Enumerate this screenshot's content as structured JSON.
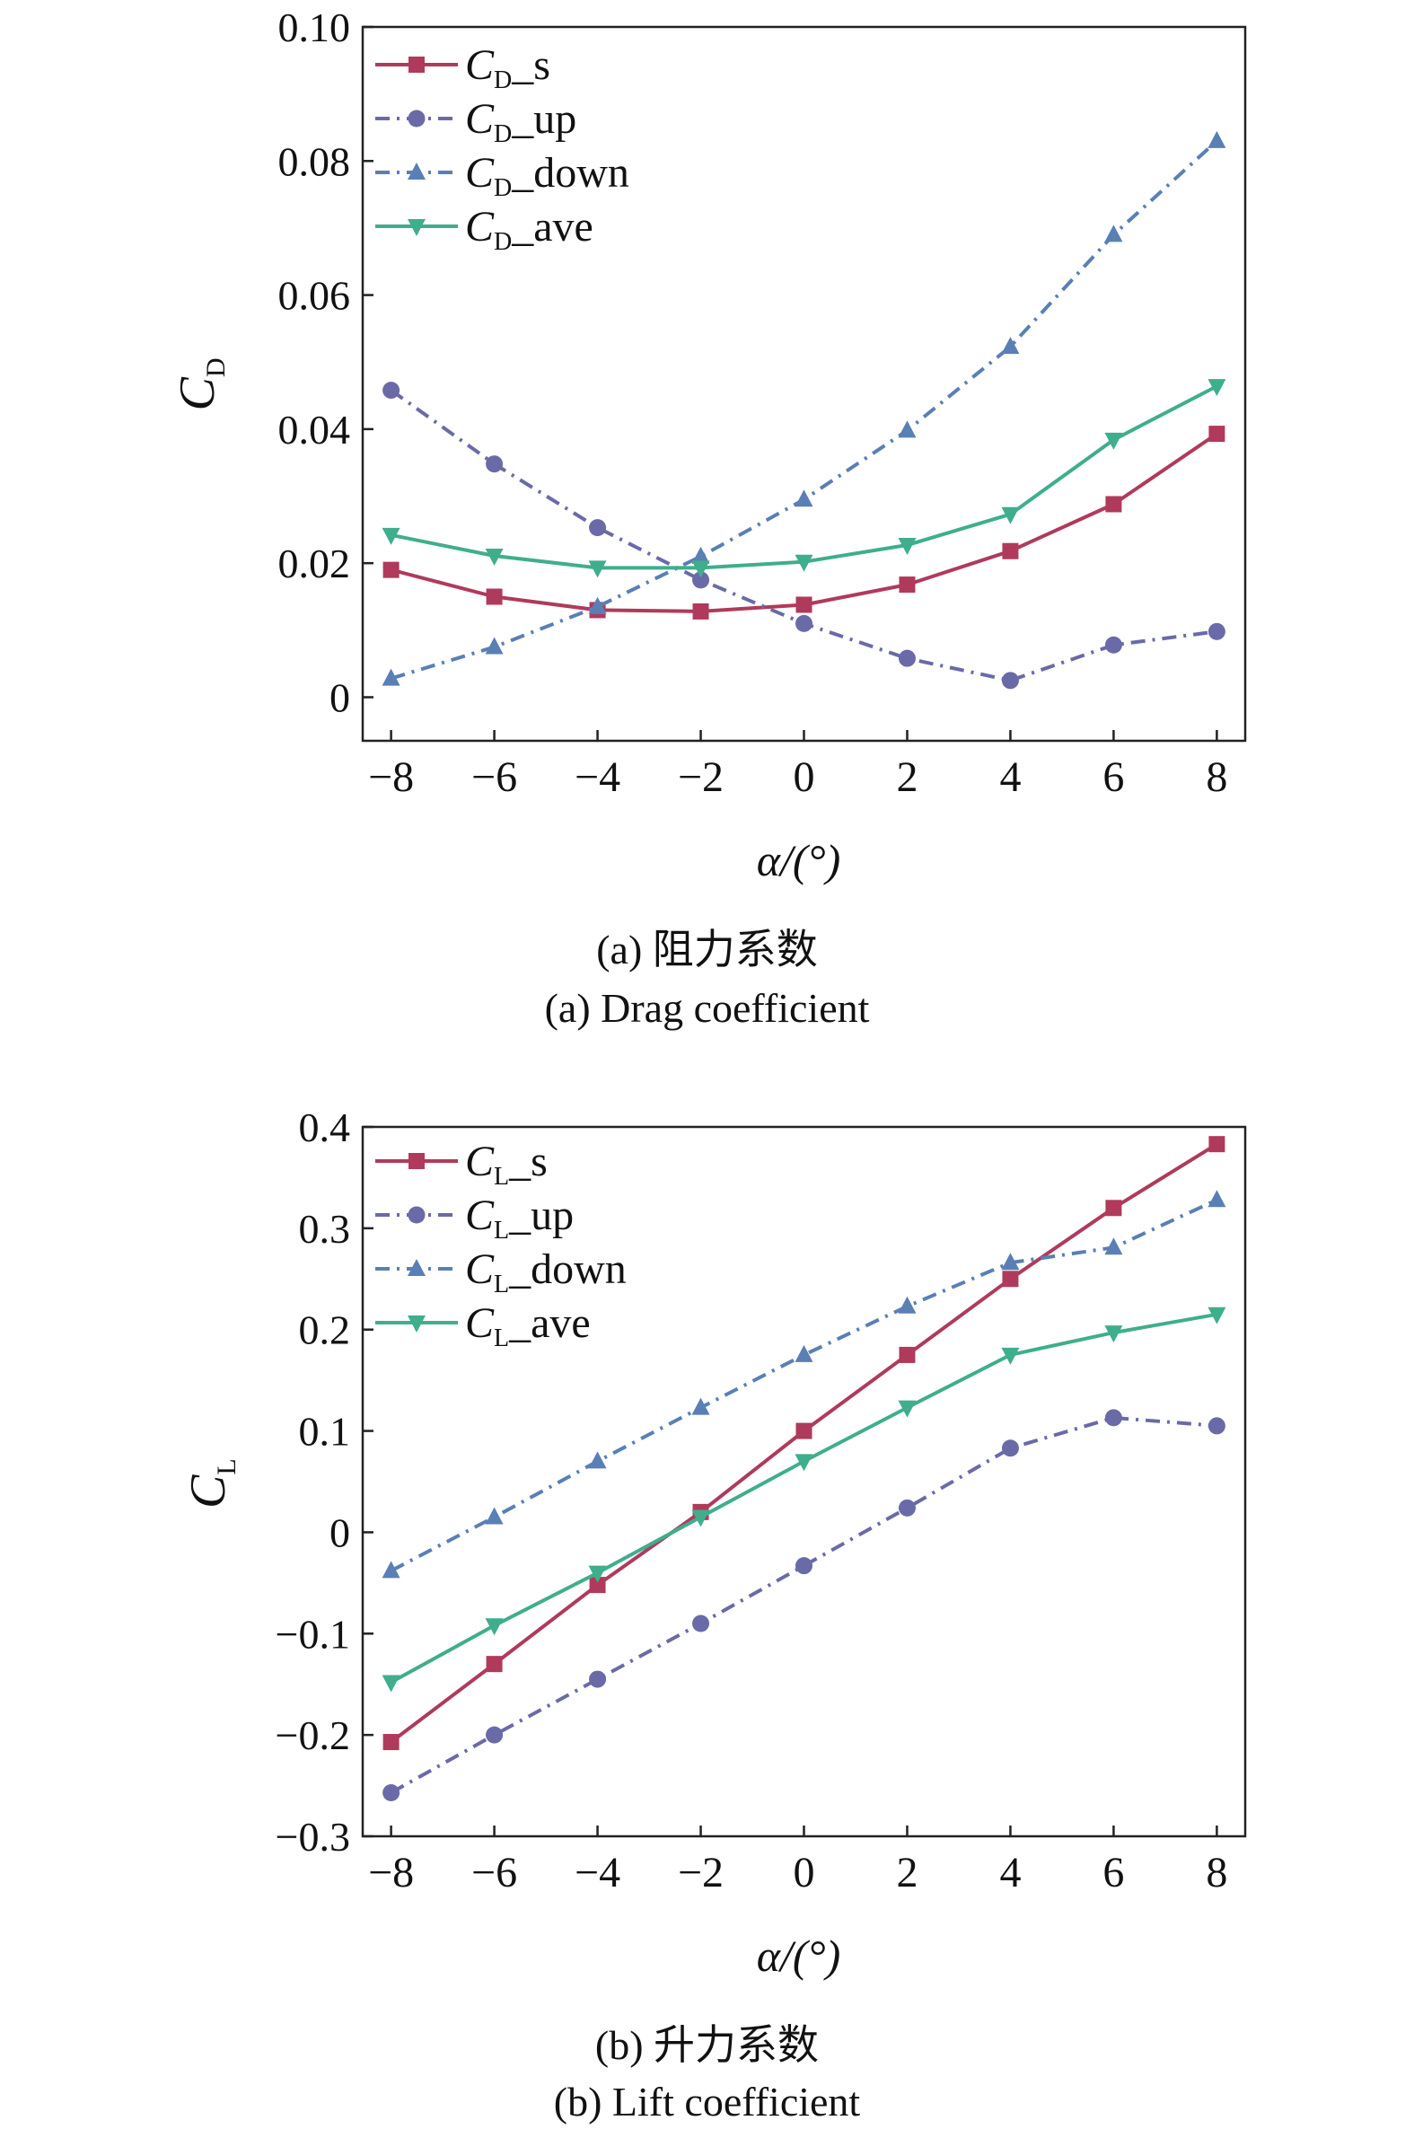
{
  "chart_data": [
    {
      "type": "line",
      "id": "drag",
      "ylabel": {
        "main": "C",
        "sub": "D"
      },
      "xlabel": "α/(°)",
      "caption_cn": "(a) 阻力系数",
      "caption_en": "(a) Drag coefficient",
      "x": [
        -8,
        -6,
        -4,
        -2,
        0,
        2,
        4,
        6,
        8
      ],
      "xlim": [
        -8.55,
        8.55
      ],
      "ylim": [
        -0.0065,
        0.1
      ],
      "xticks": [
        -8,
        -6,
        -4,
        -2,
        0,
        2,
        4,
        6,
        8
      ],
      "xtick_labels": [
        "−8",
        "−6",
        "−4",
        "−2",
        "0",
        "2",
        "4",
        "6",
        "8"
      ],
      "yticks": [
        0,
        0.02,
        0.04,
        0.06,
        0.08,
        0.1
      ],
      "ytick_labels": [
        "0",
        "0.02",
        "0.04",
        "0.06",
        "0.08",
        "0.10"
      ],
      "grid": false,
      "legend_position": "top-left",
      "series": [
        {
          "name": "C",
          "sub": "D",
          "suffix": "_s",
          "color": "#b03a5b",
          "marker": "square",
          "dash": "solid",
          "values": [
            0.019,
            0.015,
            0.013,
            0.0128,
            0.0138,
            0.0168,
            0.0218,
            0.0288,
            0.0393
          ]
        },
        {
          "name": "C",
          "sub": "D",
          "suffix": "_up",
          "color": "#6a6aa8",
          "marker": "circle",
          "dash": "dashdot",
          "values": [
            0.0458,
            0.0348,
            0.0253,
            0.0175,
            0.011,
            0.0058,
            0.0025,
            0.0078,
            0.0098
          ]
        },
        {
          "name": "C",
          "sub": "D",
          "suffix": "_down",
          "color": "#5a7fb5",
          "marker": "triangle-up",
          "dash": "dashdot",
          "values": [
            0.0028,
            0.0075,
            0.0135,
            0.021,
            0.0295,
            0.0398,
            0.0523,
            0.069,
            0.083
          ]
        },
        {
          "name": "C",
          "sub": "D",
          "suffix": "_ave",
          "color": "#3fae8c",
          "marker": "triangle-down",
          "dash": "solid",
          "values": [
            0.0242,
            0.0211,
            0.0193,
            0.0193,
            0.0202,
            0.0227,
            0.0273,
            0.0384,
            0.0464
          ]
        }
      ]
    },
    {
      "type": "line",
      "id": "lift",
      "ylabel": {
        "main": "C",
        "sub": "L"
      },
      "xlabel": "α/(°)",
      "caption_cn": "(b) 升力系数",
      "caption_en": "(b) Lift coefficient",
      "x": [
        -8,
        -6,
        -4,
        -2,
        0,
        2,
        4,
        6,
        8
      ],
      "xlim": [
        -8.55,
        8.55
      ],
      "ylim": [
        -0.3,
        0.4
      ],
      "xticks": [
        -8,
        -6,
        -4,
        -2,
        0,
        2,
        4,
        6,
        8
      ],
      "xtick_labels": [
        "−8",
        "−6",
        "−4",
        "−2",
        "0",
        "2",
        "4",
        "6",
        "8"
      ],
      "yticks": [
        -0.3,
        -0.2,
        -0.1,
        0,
        0.1,
        0.2,
        0.3,
        0.4
      ],
      "ytick_labels": [
        "−0.3",
        "−0.2",
        "−0.1",
        "0",
        "0.1",
        "0.2",
        "0.3",
        "0.4"
      ],
      "grid": false,
      "legend_position": "top-left",
      "series": [
        {
          "name": "C",
          "sub": "L",
          "suffix": "_s",
          "color": "#b03a5b",
          "marker": "square",
          "dash": "solid",
          "values": [
            -0.207,
            -0.13,
            -0.052,
            0.02,
            0.1,
            0.175,
            0.25,
            0.32,
            0.383
          ]
        },
        {
          "name": "C",
          "sub": "L",
          "suffix": "_up",
          "color": "#6a6aa8",
          "marker": "circle",
          "dash": "dashdot",
          "values": [
            -0.257,
            -0.2,
            -0.145,
            -0.09,
            -0.033,
            0.024,
            0.083,
            0.113,
            0.105
          ]
        },
        {
          "name": "C",
          "sub": "L",
          "suffix": "_down",
          "color": "#5a7fb5",
          "marker": "triangle-up",
          "dash": "dashdot",
          "values": [
            -0.038,
            0.015,
            0.07,
            0.123,
            0.175,
            0.223,
            0.266,
            0.281,
            0.328
          ]
        },
        {
          "name": "C",
          "sub": "L",
          "suffix": "_ave",
          "color": "#3fae8c",
          "marker": "triangle-down",
          "dash": "solid",
          "values": [
            -0.148,
            -0.092,
            -0.04,
            0.015,
            0.07,
            0.123,
            0.175,
            0.197,
            0.215
          ]
        }
      ]
    }
  ]
}
